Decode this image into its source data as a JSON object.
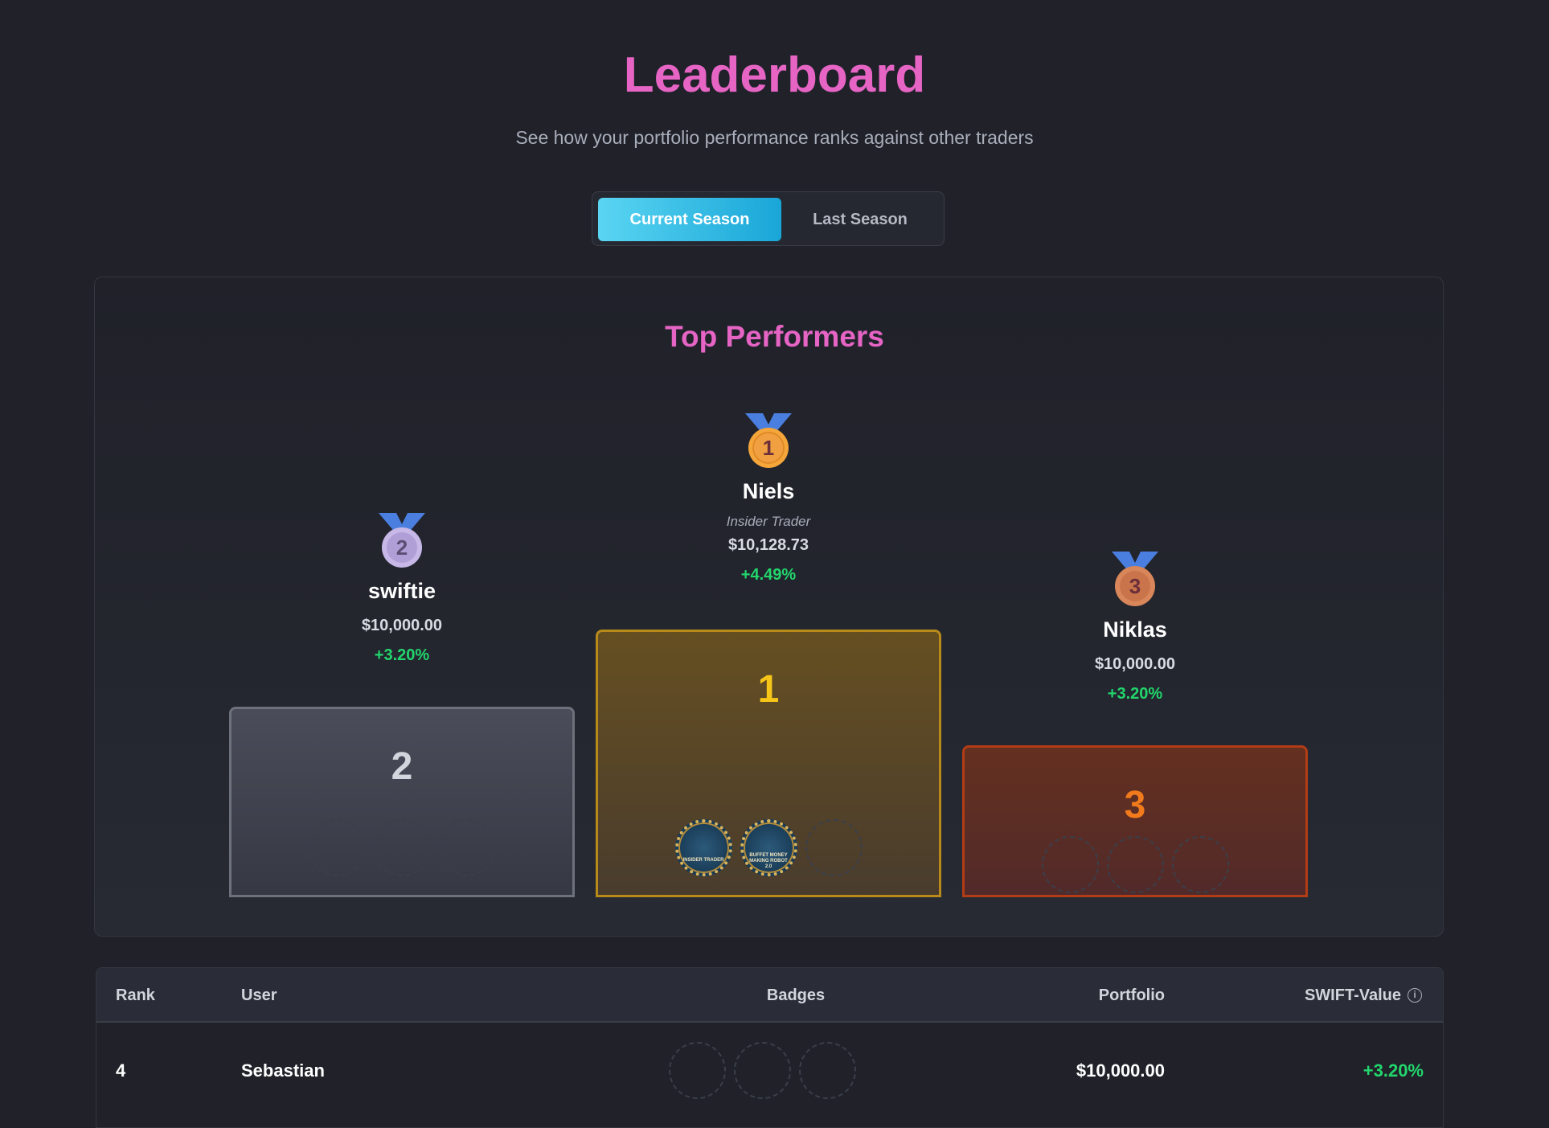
{
  "header": {
    "title": "Leaderboard",
    "subtitle": "See how your portfolio performance ranks against other traders"
  },
  "season_toggle": {
    "options": [
      "Current Season",
      "Last Season"
    ],
    "active": "Current Season",
    "accent": "#19a6d8"
  },
  "podium": {
    "title": "Top Performers",
    "entries": [
      {
        "rank": "1",
        "name": "Niels",
        "title": "Insider Trader",
        "portfolio": "$10,128.73",
        "change": "+4.49%",
        "badges": [
          "Insider Trader",
          "Buffet Money Making Robot 2.0"
        ]
      },
      {
        "rank": "2",
        "name": "swiftie",
        "portfolio": "$10,000.00",
        "change": "+3.20%",
        "badges": []
      },
      {
        "rank": "3",
        "name": "Niklas",
        "portfolio": "$10,000.00",
        "change": "+3.20%",
        "badges": []
      }
    ]
  },
  "table": {
    "columns": [
      "Rank",
      "User",
      "Badges",
      "Portfolio",
      "SWIFT-Value"
    ],
    "info_icon": "info-circle-icon",
    "rows": [
      {
        "rank": "4",
        "user": "Sebastian",
        "portfolio": "$10,000.00",
        "swift_value": "+3.20%"
      }
    ]
  },
  "colors": {
    "title": "#e564c4",
    "positive": "#22d66c",
    "gold": "#f5c518",
    "silver": "#d2d5dc",
    "bronze": "#f07a1c"
  }
}
